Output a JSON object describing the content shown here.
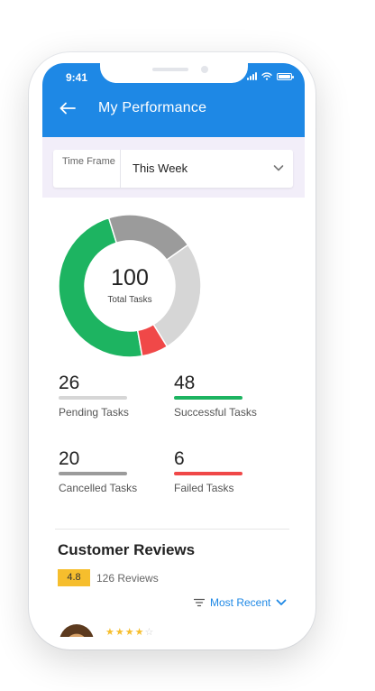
{
  "status_bar": {
    "time": "9:41"
  },
  "header": {
    "title": "My Performance"
  },
  "filter": {
    "label": "Time Frame",
    "value": "This Week"
  },
  "summary": {
    "total": "100",
    "total_label": "Total Tasks",
    "segments": [
      {
        "key": "successful",
        "value": 48,
        "color": "#1db461"
      },
      {
        "key": "cancelled",
        "value": 20,
        "color": "#9b9b9b"
      },
      {
        "key": "pending",
        "value": 26,
        "color": "#d6d6d6"
      },
      {
        "key": "failed",
        "value": 6,
        "color": "#f04848"
      }
    ]
  },
  "stats": {
    "pending": {
      "value": "26",
      "label": "Pending Tasks",
      "color": "#d6d6d6"
    },
    "successful": {
      "value": "48",
      "label": "Successful Tasks",
      "color": "#1db461"
    },
    "cancelled": {
      "value": "20",
      "label": "Cancelled Tasks",
      "color": "#9b9b9b"
    },
    "failed": {
      "value": "6",
      "label": "Failed Tasks",
      "color": "#f04848"
    }
  },
  "reviews": {
    "title": "Customer Reviews",
    "rating": "4.8",
    "count": "126 Reviews",
    "sort_label": "Most Recent",
    "first_review_stars": 4
  },
  "icons": {
    "back": "arrow-left-icon",
    "chevron": "chevron-down-icon",
    "sort": "sort-lines-icon"
  },
  "colors": {
    "accent": "#1e88e5",
    "filter_band": "#f2eef9",
    "badge": "#f6be2d"
  }
}
